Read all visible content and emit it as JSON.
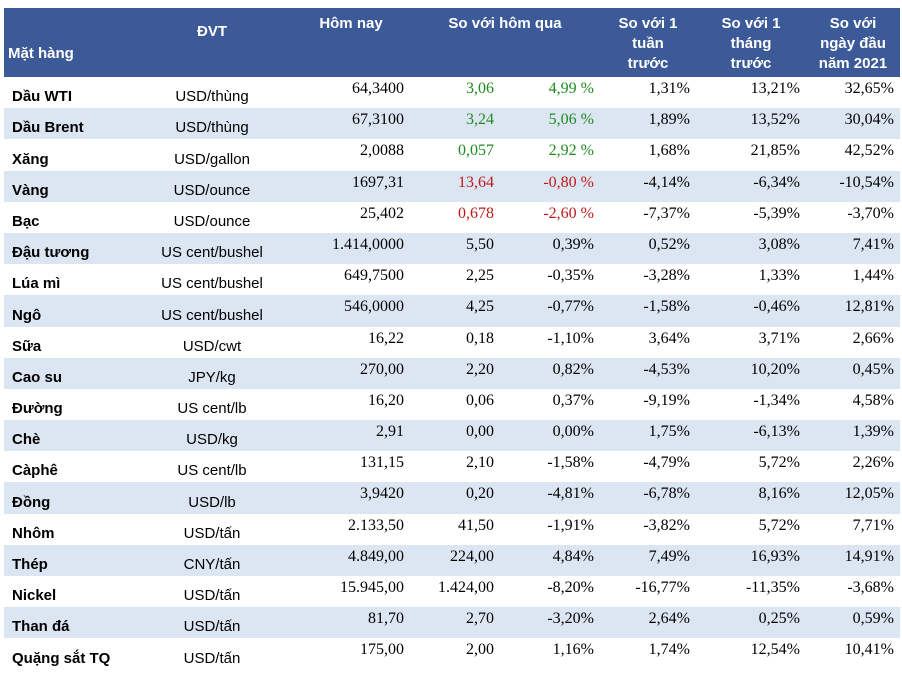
{
  "header": {
    "item": "Mặt hàng",
    "unit": "ĐVT",
    "today": "Hôm nay",
    "vs_yesterday": "So với hôm qua",
    "vs_week_l1": "So với 1",
    "vs_week_l2": "tuần",
    "vs_week_l3": "trước",
    "vs_month_l1": "So với 1",
    "vs_month_l2": "tháng",
    "vs_month_l3": "trước",
    "vs_year_l1": "So với",
    "vs_year_l2": "ngày đầu",
    "vs_year_l3": "năm 2021"
  },
  "colors": {
    "header_bg": "#3d5a98",
    "alt_row_bg": "#dce6f2",
    "up": "#1f8a1f",
    "down": "#c01818"
  },
  "rows": [
    {
      "name": "Dầu WTI",
      "unit": "USD/thùng",
      "today": "64,3400",
      "d_abs": "3,06",
      "d_pct": "4,99 %",
      "week": "1,31%",
      "month": "13,21%",
      "ytd": "32,65%",
      "trend": "up"
    },
    {
      "name": "Dầu Brent",
      "unit": "USD/thùng",
      "today": "67,3100",
      "d_abs": "3,24",
      "d_pct": "5,06 %",
      "week": "1,89%",
      "month": "13,52%",
      "ytd": "30,04%",
      "trend": "up"
    },
    {
      "name": "Xăng",
      "unit": "USD/gallon",
      "today": "2,0088",
      "d_abs": "0,057",
      "d_pct": "2,92 %",
      "week": "1,68%",
      "month": "21,85%",
      "ytd": "42,52%",
      "trend": "up"
    },
    {
      "name": "Vàng",
      "unit": "USD/ounce",
      "today": "1697,31",
      "d_abs": "13,64",
      "d_pct": "-0,80 %",
      "week": "-4,14%",
      "month": "-6,34%",
      "ytd": "-10,54%",
      "trend": "down"
    },
    {
      "name": "Bạc",
      "unit": "USD/ounce",
      "today": "25,402",
      "d_abs": "0,678",
      "d_pct": "-2,60 %",
      "week": "-7,37%",
      "month": "-5,39%",
      "ytd": "-3,70%",
      "trend": "down"
    },
    {
      "name": "Đậu tương",
      "unit": "US cent/bushel",
      "today": "1.414,0000",
      "d_abs": "5,50",
      "d_pct": "0,39%",
      "week": "0,52%",
      "month": "3,08%",
      "ytd": "7,41%",
      "trend": "none"
    },
    {
      "name": "Lúa mì",
      "unit": "US cent/bushel",
      "today": "649,7500",
      "d_abs": "2,25",
      "d_pct": "-0,35%",
      "week": "-3,28%",
      "month": "1,33%",
      "ytd": "1,44%",
      "trend": "none"
    },
    {
      "name": "Ngô",
      "unit": "US cent/bushel",
      "today": "546,0000",
      "d_abs": "4,25",
      "d_pct": "-0,77%",
      "week": "-1,58%",
      "month": "-0,46%",
      "ytd": "12,81%",
      "trend": "none"
    },
    {
      "name": "Sữa",
      "unit": "USD/cwt",
      "today": "16,22",
      "d_abs": "0,18",
      "d_pct": "-1,10%",
      "week": "3,64%",
      "month": "3,71%",
      "ytd": "2,66%",
      "trend": "none"
    },
    {
      "name": "Cao su",
      "unit": "JPY/kg",
      "today": "270,00",
      "d_abs": "2,20",
      "d_pct": "0,82%",
      "week": "-4,53%",
      "month": "10,20%",
      "ytd": "0,45%",
      "trend": "none"
    },
    {
      "name": "Đường",
      "unit": "US cent/lb",
      "today": "16,20",
      "d_abs": "0,06",
      "d_pct": "0,37%",
      "week": "-9,19%",
      "month": "-1,34%",
      "ytd": "4,58%",
      "trend": "none"
    },
    {
      "name": "Chè",
      "unit": "USD/kg",
      "today": "2,91",
      "d_abs": "0,00",
      "d_pct": "0,00%",
      "week": "1,75%",
      "month": "-6,13%",
      "ytd": "1,39%",
      "trend": "none"
    },
    {
      "name": "Càphê",
      "unit": "US cent/lb",
      "today": "131,15",
      "d_abs": "2,10",
      "d_pct": "-1,58%",
      "week": "-4,79%",
      "month": "5,72%",
      "ytd": "2,26%",
      "trend": "none"
    },
    {
      "name": "Đồng",
      "unit": "USD/lb",
      "today": "3,9420",
      "d_abs": "0,20",
      "d_pct": "-4,81%",
      "week": "-6,78%",
      "month": "8,16%",
      "ytd": "12,05%",
      "trend": "none"
    },
    {
      "name": "Nhôm",
      "unit": "USD/tấn",
      "today": "2.133,50",
      "d_abs": "41,50",
      "d_pct": "-1,91%",
      "week": "-3,82%",
      "month": "5,72%",
      "ytd": "7,71%",
      "trend": "none"
    },
    {
      "name": "Thép",
      "unit": "CNY/tấn",
      "today": "4.849,00",
      "d_abs": "224,00",
      "d_pct": "4,84%",
      "week": "7,49%",
      "month": "16,93%",
      "ytd": "14,91%",
      "trend": "none"
    },
    {
      "name": "Nickel",
      "unit": "USD/tấn",
      "today": "15.945,00",
      "d_abs": "1.424,00",
      "d_pct": "-8,20%",
      "week": "-16,77%",
      "month": "-11,35%",
      "ytd": "-3,68%",
      "trend": "none"
    },
    {
      "name": "Than đá",
      "unit": "USD/tấn",
      "today": "81,70",
      "d_abs": "2,70",
      "d_pct": "-3,20%",
      "week": "2,64%",
      "month": "0,25%",
      "ytd": "0,59%",
      "trend": "none"
    },
    {
      "name": "Quặng sắt TQ",
      "unit": "USD/tấn",
      "today": "175,00",
      "d_abs": "2,00",
      "d_pct": "1,16%",
      "week": "1,74%",
      "month": "12,54%",
      "ytd": "10,41%",
      "trend": "none"
    }
  ]
}
